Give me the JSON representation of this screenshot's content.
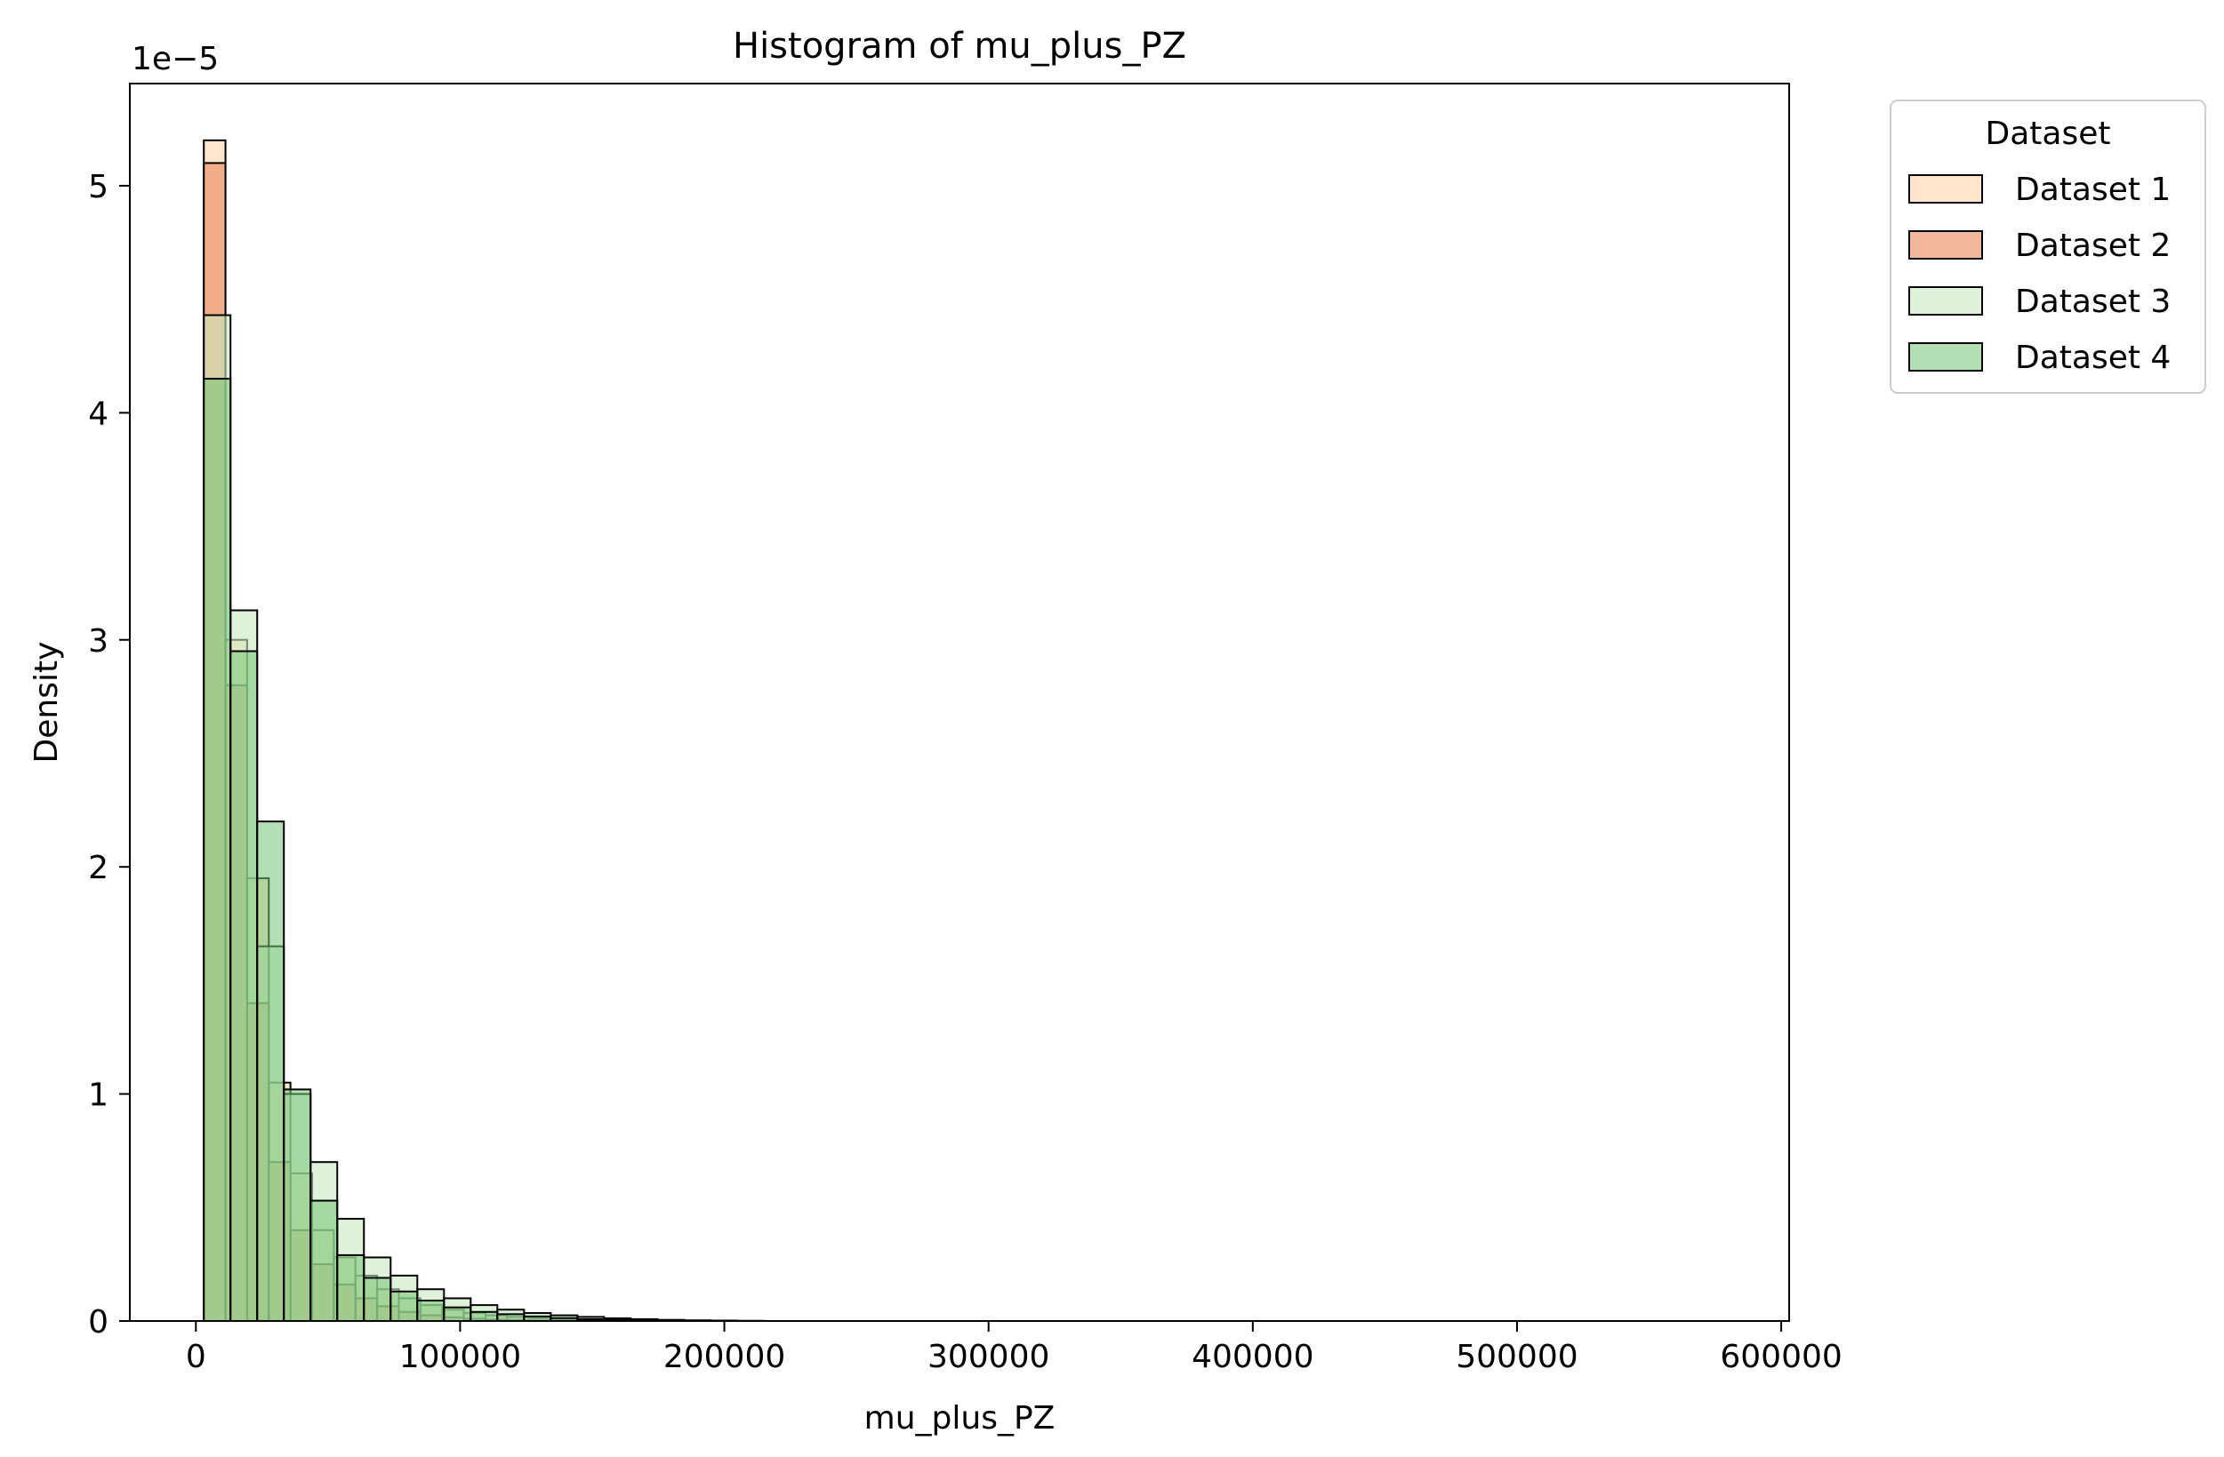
{
  "chart_data": {
    "type": "bar",
    "title": "Histogram of mu_plus_PZ",
    "xlabel": "mu_plus_PZ",
    "ylabel": "Density",
    "y_offset_text": "1e−5",
    "xlim": [
      -25000,
      603000
    ],
    "ylim": [
      0,
      5.45
    ],
    "y_scale_factor": 1e-05,
    "xticks": [
      0,
      100000,
      200000,
      300000,
      400000,
      500000,
      600000
    ],
    "xtick_labels": [
      "0",
      "100000",
      "200000",
      "300000",
      "400000",
      "500000",
      "600000"
    ],
    "yticks": [
      0,
      1,
      2,
      3,
      4,
      5
    ],
    "ytick_labels": [
      "0",
      "1",
      "2",
      "3",
      "4",
      "5"
    ],
    "grid": false,
    "legend": {
      "title": "Dataset",
      "placement": "outside upper right"
    },
    "series": [
      {
        "name": "Dataset 1",
        "color": "#fdd0a2",
        "opacity": 0.55,
        "bin_start": 3000,
        "bin_width": 8200,
        "values": [
          5.2,
          3.0,
          1.95,
          1.05,
          0.65,
          0.4,
          0.28,
          0.2,
          0.14,
          0.1,
          0.07,
          0.05,
          0.035,
          0.025,
          0.018,
          0.012,
          0.008,
          0.005,
          0.003,
          0.002,
          0.001
        ]
      },
      {
        "name": "Dataset 2",
        "color": "#ec8a5e",
        "opacity": 0.62,
        "bin_start": 3000,
        "bin_width": 8200,
        "values": [
          5.1,
          2.8,
          1.4,
          0.7,
          0.4,
          0.25,
          0.16,
          0.1,
          0.065,
          0.04,
          0.025,
          0.016,
          0.01,
          0.006,
          0.004,
          0.002,
          0.001
        ]
      },
      {
        "name": "Dataset 3",
        "color": "#c7e9c0",
        "opacity": 0.6,
        "bin_start": 3000,
        "bin_width": 10100,
        "values": [
          4.43,
          3.13,
          1.65,
          1.0,
          0.7,
          0.45,
          0.28,
          0.2,
          0.14,
          0.1,
          0.07,
          0.05,
          0.035,
          0.025,
          0.018,
          0.012,
          0.008,
          0.005,
          0.003,
          0.002,
          0.001
        ]
      },
      {
        "name": "Dataset 4",
        "color": "#74c476",
        "opacity": 0.55,
        "bin_start": 3000,
        "bin_width": 10100,
        "values": [
          4.15,
          2.95,
          2.2,
          1.02,
          0.53,
          0.29,
          0.19,
          0.13,
          0.09,
          0.06,
          0.04,
          0.03,
          0.02,
          0.013,
          0.008,
          0.005,
          0.003,
          0.002,
          0.001
        ]
      }
    ]
  }
}
